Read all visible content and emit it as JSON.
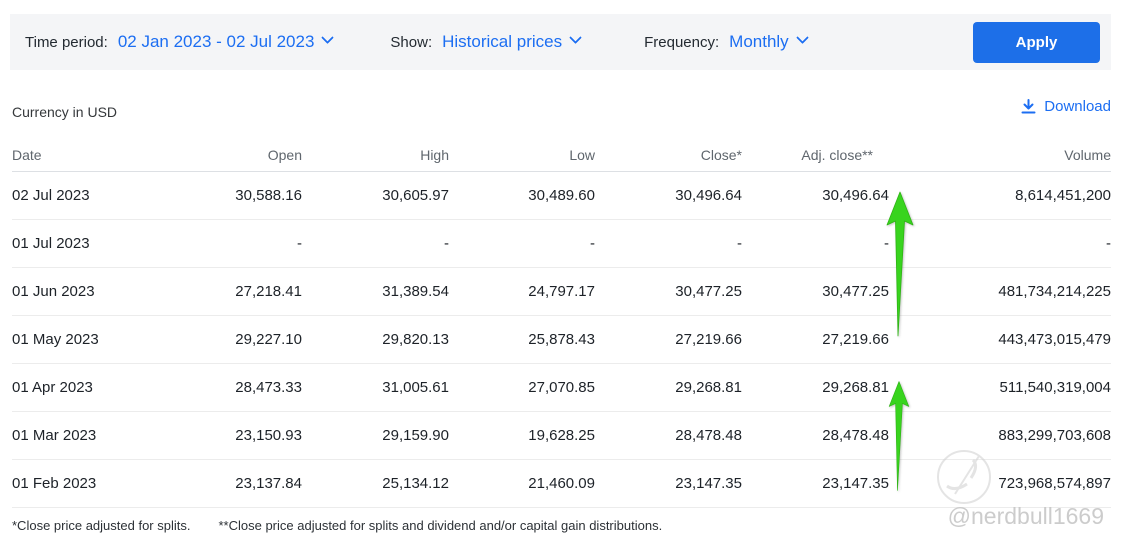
{
  "filter_bar": {
    "time_period_label": "Time period:",
    "time_period_value": "02 Jan 2023 - 02 Jul 2023",
    "show_label": "Show:",
    "show_value": "Historical prices",
    "frequency_label": "Frequency:",
    "frequency_value": "Monthly",
    "apply_label": "Apply"
  },
  "meta": {
    "currency_note": "Currency in USD",
    "download_label": "Download"
  },
  "table": {
    "columns": [
      "Date",
      "Open",
      "High",
      "Low",
      "Close*",
      "Adj. close**",
      "Volume"
    ],
    "rows": [
      [
        "02 Jul 2023",
        "30,588.16",
        "30,605.97",
        "30,489.60",
        "30,496.64",
        "30,496.64",
        "8,614,451,200"
      ],
      [
        "01 Jul 2023",
        "-",
        "-",
        "-",
        "-",
        "-",
        "-"
      ],
      [
        "01 Jun 2023",
        "27,218.41",
        "31,389.54",
        "24,797.17",
        "30,477.25",
        "30,477.25",
        "481,734,214,225"
      ],
      [
        "01 May 2023",
        "29,227.10",
        "29,820.13",
        "25,878.43",
        "27,219.66",
        "27,219.66",
        "443,473,015,479"
      ],
      [
        "01 Apr 2023",
        "28,473.33",
        "31,005.61",
        "27,070.85",
        "29,268.81",
        "29,268.81",
        "511,540,319,004"
      ],
      [
        "01 Mar 2023",
        "23,150.93",
        "29,159.90",
        "19,628.25",
        "28,478.48",
        "28,478.48",
        "883,299,703,608"
      ],
      [
        "01 Feb 2023",
        "23,137.84",
        "25,134.12",
        "21,460.09",
        "23,147.35",
        "23,147.35",
        "723,968,574,897"
      ]
    ]
  },
  "footnotes": {
    "splits": "*Close price adjusted for splits.",
    "dividends": "**Close price adjusted for splits and dividend and/or capital gain distributions."
  },
  "annotations": {
    "arrows": "two hand-drawn green up arrows over Adj. close column",
    "arrow_color": "#38d41e"
  },
  "watermark": {
    "handle": "@nerdbull1669",
    "logo": "circle-badge"
  },
  "icons": {
    "chevron": "chevron-down-icon",
    "download": "download-icon"
  },
  "colors": {
    "accent_blue": "#1c6ef2",
    "apply_button_blue": "#1d6fe8",
    "filter_bar_bg": "#f4f5f7",
    "arrow_green": "#38d41e",
    "watermark_gray": "#c7c7c7"
  }
}
